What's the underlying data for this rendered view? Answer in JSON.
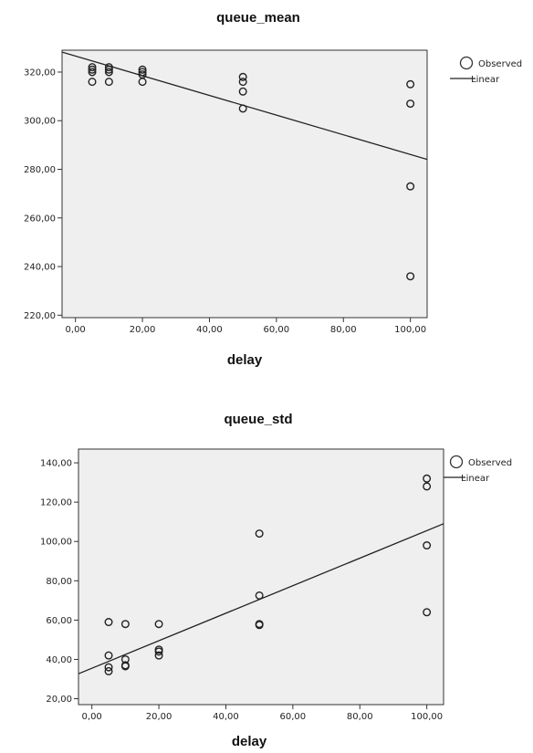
{
  "chart_data": [
    {
      "type": "scatter",
      "title": "queue_mean",
      "xlabel": "delay",
      "ylabel": "",
      "xlim": [
        -4,
        105
      ],
      "ylim": [
        219,
        329
      ],
      "x_ticks": [
        "0,00",
        "20,00",
        "40,00",
        "60,00",
        "80,00",
        "100,00"
      ],
      "y_ticks": [
        "220,00",
        "240,00",
        "260,00",
        "280,00",
        "300,00",
        "320,00"
      ],
      "legend": [
        "Observed",
        "Linear"
      ],
      "legend_position": "right",
      "grid": false,
      "plot_background": "#efefef",
      "series": [
        {
          "name": "Observed",
          "points": [
            [
              5,
              322
            ],
            [
              5,
              321
            ],
            [
              5,
              320
            ],
            [
              5,
              316
            ],
            [
              10,
              322
            ],
            [
              10,
              321
            ],
            [
              10,
              320
            ],
            [
              10,
              316
            ],
            [
              20,
              321
            ],
            [
              20,
              320
            ],
            [
              20,
              319
            ],
            [
              20,
              316
            ],
            [
              50,
              318
            ],
            [
              50,
              316
            ],
            [
              50,
              312
            ],
            [
              50,
              305
            ],
            [
              100,
              315
            ],
            [
              100,
              307
            ],
            [
              100,
              273
            ],
            [
              100,
              236
            ]
          ]
        },
        {
          "name": "Linear",
          "fit": {
            "intercept": 326.6,
            "slope": -0.405
          }
        }
      ]
    },
    {
      "type": "scatter",
      "title": "queue_std",
      "xlabel": "delay",
      "ylabel": "",
      "xlim": [
        -4,
        105
      ],
      "ylim": [
        17,
        147
      ],
      "x_ticks": [
        "0,00",
        "20,00",
        "40,00",
        "60,00",
        "80,00",
        "100,00"
      ],
      "y_ticks": [
        "20,00",
        "40,00",
        "60,00",
        "80,00",
        "100,00",
        "120,00",
        "140,00"
      ],
      "legend": [
        "Observed",
        "Linear"
      ],
      "legend_position": "right",
      "grid": false,
      "plot_background": "#efefef",
      "series": [
        {
          "name": "Observed",
          "points": [
            [
              5,
              59
            ],
            [
              5,
              42
            ],
            [
              5,
              36
            ],
            [
              5,
              34
            ],
            [
              10,
              58
            ],
            [
              10,
              40
            ],
            [
              10,
              37
            ],
            [
              10,
              36.5
            ],
            [
              20,
              58
            ],
            [
              20,
              45
            ],
            [
              20,
              44
            ],
            [
              20,
              42
            ],
            [
              50,
              104
            ],
            [
              50,
              72.5
            ],
            [
              50,
              58
            ],
            [
              50,
              57.5
            ],
            [
              100,
              132
            ],
            [
              100,
              128
            ],
            [
              100,
              98
            ],
            [
              100,
              64
            ]
          ]
        },
        {
          "name": "Linear",
          "fit": {
            "intercept": 35.5,
            "slope": 0.7
          }
        }
      ]
    }
  ]
}
